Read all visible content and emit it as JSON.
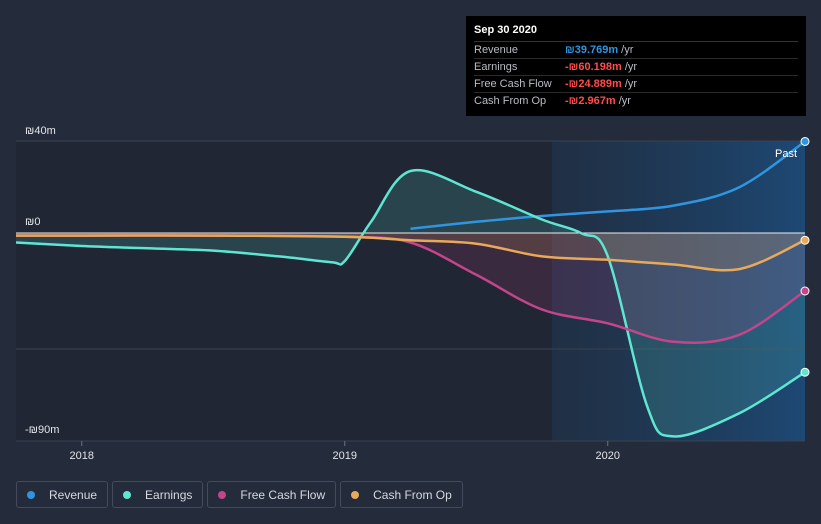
{
  "tooltip": {
    "date": "Sep 30 2020",
    "rows": [
      {
        "label": "Revenue",
        "value": "₪39.769m",
        "unit": "/yr",
        "color": "#2f95e0"
      },
      {
        "label": "Earnings",
        "value": "-₪60.198m",
        "unit": "/yr",
        "color": "#ff4d4d"
      },
      {
        "label": "Free Cash Flow",
        "value": "-₪24.889m",
        "unit": "/yr",
        "color": "#ff4d4d"
      },
      {
        "label": "Cash From Op",
        "value": "-₪2.967m",
        "unit": "/yr",
        "color": "#ff4d4d"
      }
    ]
  },
  "colors": {
    "background": "#242b3a",
    "revenue": "#2f95e0",
    "earnings": "#5ee6d2",
    "fcf": "#c4458a",
    "cfo": "#e8a95a"
  },
  "legend": [
    {
      "label": "Revenue",
      "color": "#2f95e0"
    },
    {
      "label": "Earnings",
      "color": "#5ee6d2"
    },
    {
      "label": "Free Cash Flow",
      "color": "#c4458a"
    },
    {
      "label": "Cash From Op",
      "color": "#e8a95a"
    }
  ],
  "chart_data": {
    "type": "line",
    "title": "",
    "xlabel": "",
    "ylabel": "",
    "units": "₪ millions",
    "ylim": [
      -90,
      40
    ],
    "xlim": [
      2017.75,
      2020.75
    ],
    "y_tick_labels": [
      {
        "value": 40,
        "label": "₪40m"
      },
      {
        "value": 0,
        "label": "₪0"
      },
      {
        "value": -90,
        "label": "-₪90m"
      }
    ],
    "x_tick_labels": [
      {
        "value": 2018,
        "label": "2018"
      },
      {
        "value": 2019,
        "label": "2019"
      },
      {
        "value": 2020,
        "label": "2020"
      }
    ],
    "past_label": "Past",
    "past_start": 2019.75,
    "series": [
      {
        "name": "Revenue",
        "key": "revenue",
        "points": [
          [
            2019.25,
            2
          ],
          [
            2019.5,
            5
          ],
          [
            2019.75,
            7.5
          ],
          [
            2020.0,
            9.5
          ],
          [
            2020.25,
            12
          ],
          [
            2020.5,
            20
          ],
          [
            2020.75,
            39.8
          ]
        ]
      },
      {
        "name": "Earnings",
        "key": "earnings",
        "points": [
          [
            2017.75,
            -4
          ],
          [
            2018.0,
            -5.5
          ],
          [
            2018.25,
            -6.5
          ],
          [
            2018.5,
            -7.5
          ],
          [
            2018.75,
            -10
          ],
          [
            2018.95,
            -12.5
          ],
          [
            2019.0,
            -12
          ],
          [
            2019.1,
            5
          ],
          [
            2019.25,
            27
          ],
          [
            2019.5,
            18
          ],
          [
            2019.75,
            6
          ],
          [
            2019.9,
            0
          ],
          [
            2020.0,
            -10
          ],
          [
            2020.15,
            -75
          ],
          [
            2020.25,
            -88
          ],
          [
            2020.5,
            -78
          ],
          [
            2020.75,
            -60.2
          ]
        ]
      },
      {
        "name": "Free Cash Flow",
        "key": "fcf",
        "points": [
          [
            2017.75,
            -1
          ],
          [
            2018.0,
            -1
          ],
          [
            2018.5,
            -1
          ],
          [
            2019.0,
            -1.5
          ],
          [
            2019.25,
            -4
          ],
          [
            2019.5,
            -18
          ],
          [
            2019.75,
            -33
          ],
          [
            2020.0,
            -39
          ],
          [
            2020.25,
            -47
          ],
          [
            2020.5,
            -44
          ],
          [
            2020.75,
            -25
          ]
        ]
      },
      {
        "name": "Cash From Op",
        "key": "cfo",
        "points": [
          [
            2017.75,
            -1
          ],
          [
            2018.0,
            -1
          ],
          [
            2018.5,
            -1
          ],
          [
            2019.0,
            -1.5
          ],
          [
            2019.25,
            -3
          ],
          [
            2019.5,
            -4.5
          ],
          [
            2019.75,
            -10
          ],
          [
            2020.0,
            -11.5
          ],
          [
            2020.25,
            -13.5
          ],
          [
            2020.5,
            -15.5
          ],
          [
            2020.75,
            -3
          ]
        ]
      }
    ]
  }
}
